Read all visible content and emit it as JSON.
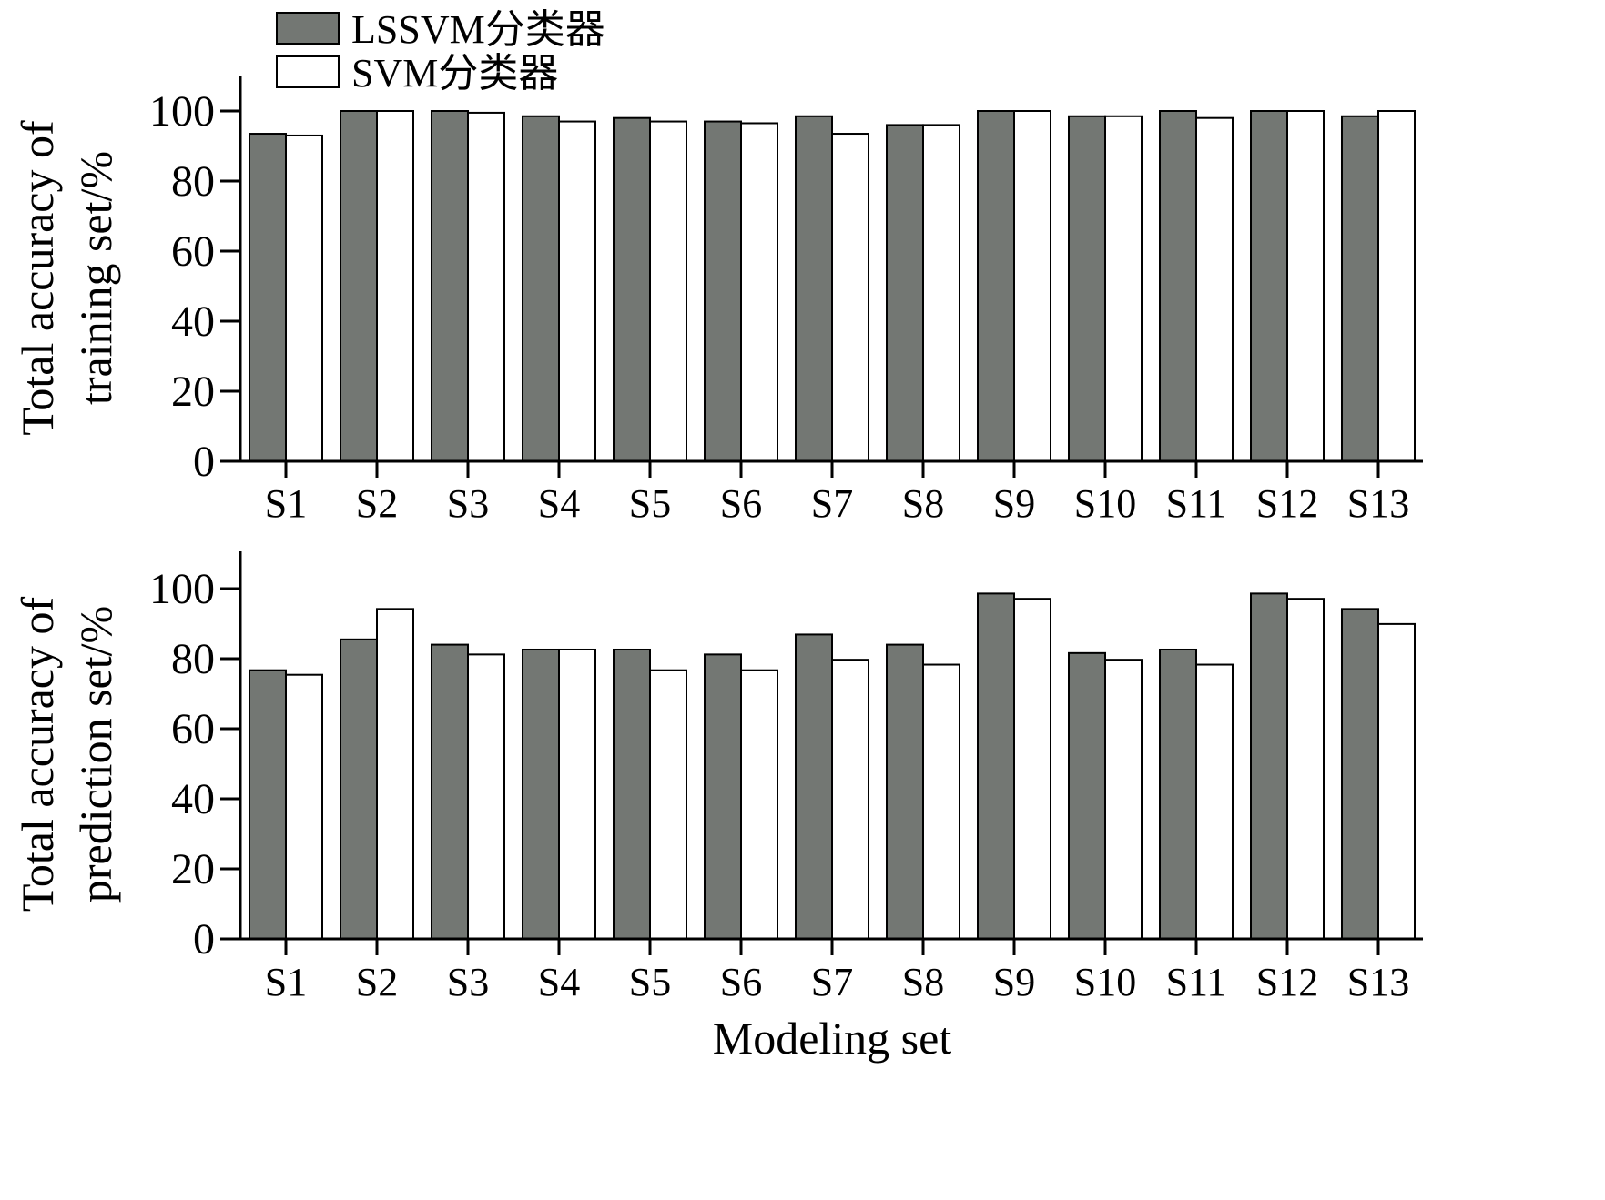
{
  "legend": [
    {
      "label": "LSSVM分类器",
      "color": "#737773"
    },
    {
      "label": "SVM分类器",
      "color": "#ffffff"
    }
  ],
  "xlabel": "Modeling set",
  "chart_data": [
    {
      "type": "bar",
      "title": "",
      "ylabel_lines": [
        "Total accuracy of",
        "training set/%"
      ],
      "ylim": [
        0,
        110
      ],
      "yticks": [
        0,
        20,
        40,
        60,
        80,
        100
      ],
      "categories": [
        "S1",
        "S2",
        "S3",
        "S4",
        "S5",
        "S6",
        "S7",
        "S8",
        "S9",
        "S10",
        "S11",
        "S12",
        "S13"
      ],
      "series": [
        {
          "name": "LSSVM分类器",
          "color": "#737773",
          "values": [
            93.5,
            100,
            100,
            98.5,
            98,
            97,
            98.5,
            96,
            100,
            98.5,
            100,
            100,
            98.5
          ]
        },
        {
          "name": "SVM分类器",
          "color": "#ffffff",
          "values": [
            93,
            100,
            99.5,
            97,
            97,
            96.5,
            93.5,
            96,
            100,
            98.5,
            98,
            100,
            100
          ]
        }
      ],
      "grid": false
    },
    {
      "type": "bar",
      "title": "",
      "ylabel_lines": [
        "Total accuracy of",
        "prediction set/%"
      ],
      "ylim": [
        0,
        110
      ],
      "yticks": [
        0,
        20,
        40,
        60,
        80,
        100
      ],
      "categories": [
        "S1",
        "S2",
        "S3",
        "S4",
        "S5",
        "S6",
        "S7",
        "S8",
        "S9",
        "S10",
        "S11",
        "S12",
        "S13"
      ],
      "series": [
        {
          "name": "LSSVM分类器",
          "color": "#737773",
          "values": [
            76.7,
            85.5,
            84,
            82.6,
            82.6,
            81.2,
            86.9,
            84,
            98.6,
            81.6,
            82.6,
            98.6,
            94.2
          ]
        },
        {
          "name": "SVM分类器",
          "color": "#ffffff",
          "values": [
            75.4,
            94.2,
            81.2,
            82.6,
            76.7,
            76.7,
            79.7,
            78.3,
            97.1,
            79.7,
            78.3,
            97.1,
            89.9
          ]
        }
      ],
      "grid": false
    }
  ]
}
